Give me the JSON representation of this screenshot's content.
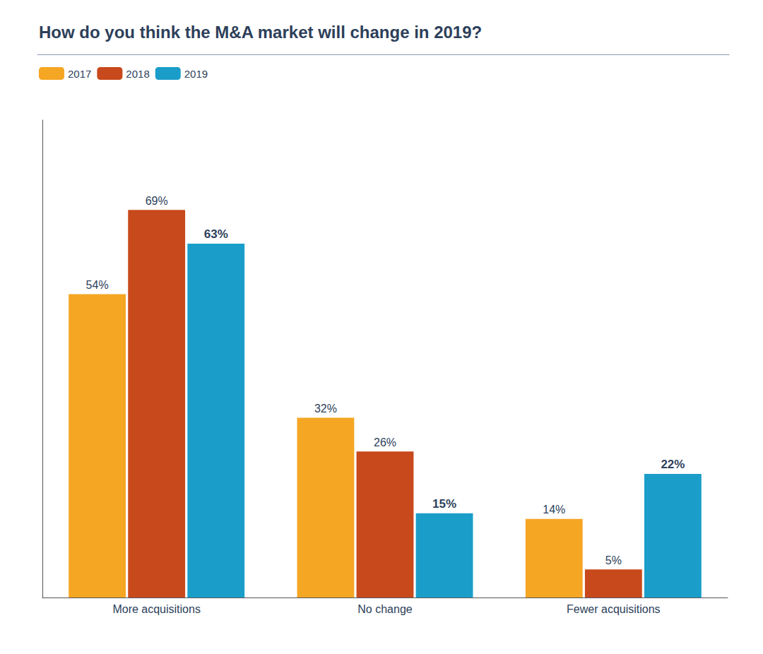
{
  "chart_data": {
    "type": "bar",
    "title": "How do you think the M&A market will change in 2019?",
    "categories": [
      "More acquisitions",
      "No change",
      "Fewer acquisitions"
    ],
    "series": [
      {
        "name": "2017",
        "color": "#F5A623",
        "values": [
          54,
          32,
          14
        ],
        "value_labels": [
          "54%",
          "32%",
          "14%"
        ]
      },
      {
        "name": "2018",
        "color": "#C8491C",
        "values": [
          69,
          26,
          5
        ],
        "value_labels": [
          "69%",
          "26%",
          "5%"
        ]
      },
      {
        "name": "2019",
        "color": "#1A9EC9",
        "values": [
          63,
          15,
          22
        ],
        "value_labels": [
          "63%",
          "15%",
          "22%"
        ]
      }
    ],
    "ylim": [
      0,
      85
    ],
    "yticks": [],
    "grid": false,
    "legend": "top left",
    "data_labels": true,
    "tick_labels": "x"
  }
}
